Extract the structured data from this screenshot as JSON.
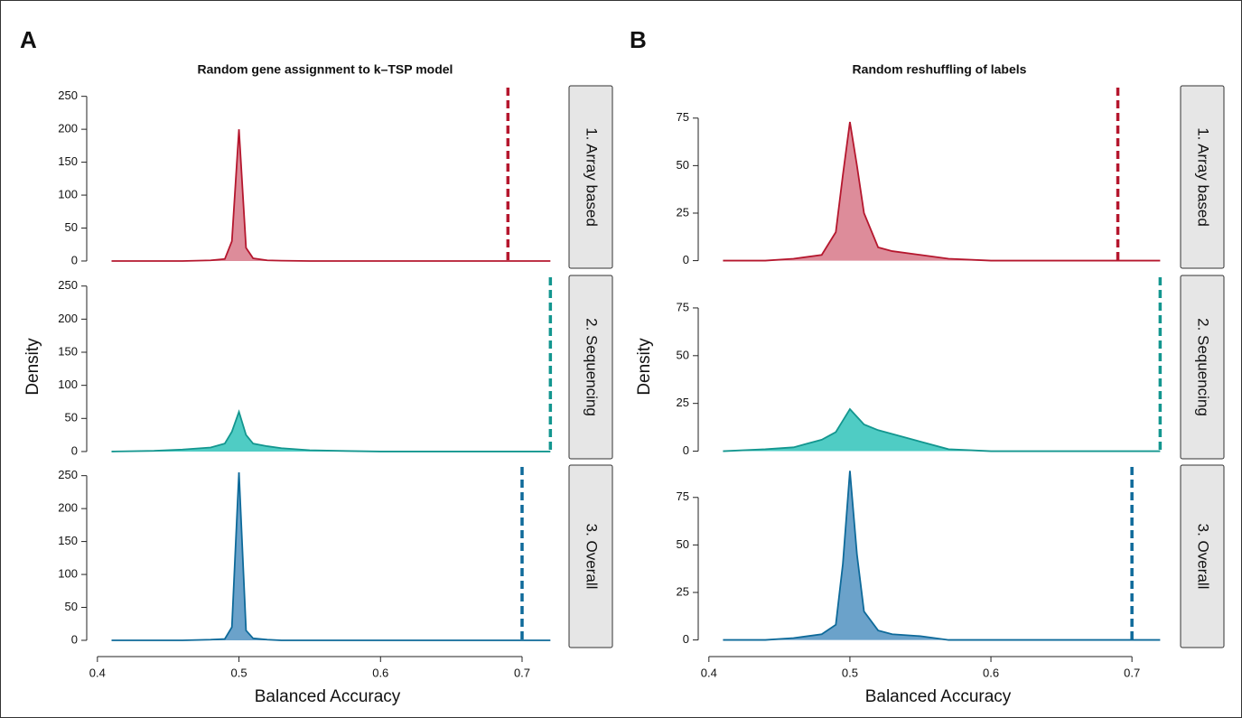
{
  "chart_data": [
    {
      "type": "density",
      "panel": "A",
      "title": "Random gene assignment to k–TSP model",
      "xlabel": "Balanced Accuracy",
      "ylabel": "Density",
      "xlim": [
        0.395,
        0.73
      ],
      "xticks": [
        0.4,
        0.5,
        0.6,
        0.7
      ],
      "ylim": [
        -11,
        266
      ],
      "yticks": [
        0,
        50,
        100,
        150,
        200,
        250
      ],
      "x": [
        0.41,
        0.44,
        0.46,
        0.48,
        0.49,
        0.495,
        0.5,
        0.505,
        0.51,
        0.52,
        0.53,
        0.55,
        0.57,
        0.6,
        0.65,
        0.72
      ],
      "series": [
        {
          "name": "1. Array based",
          "color": "#b5172e",
          "fill": "#d9808f",
          "cutoff": 0.69,
          "values": [
            0,
            0,
            0,
            1,
            3,
            30,
            200,
            20,
            4,
            1,
            0.5,
            0,
            0,
            0,
            0,
            0
          ]
        },
        {
          "name": "2. Sequencing",
          "color": "#13968f",
          "fill": "#3cc7be",
          "cutoff": 0.72,
          "values": [
            0,
            1,
            3,
            6,
            12,
            30,
            60,
            25,
            12,
            8,
            5,
            2,
            1,
            0,
            0,
            0
          ]
        },
        {
          "name": "3. Overall",
          "color": "#0e6a9a",
          "fill": "#5b98c4",
          "cutoff": 0.7,
          "values": [
            0,
            0,
            0,
            1,
            2,
            20,
            255,
            15,
            3,
            1,
            0,
            0,
            0,
            0,
            0,
            0
          ]
        }
      ]
    },
    {
      "type": "density",
      "panel": "B",
      "title": "Random reshuffling of labels",
      "xlabel": "Balanced Accuracy",
      "ylabel": "Density",
      "xlim": [
        0.395,
        0.73
      ],
      "xticks": [
        0.4,
        0.5,
        0.6,
        0.7
      ],
      "ylim": [
        -4,
        92
      ],
      "yticks": [
        0,
        25,
        50,
        75
      ],
      "x": [
        0.41,
        0.44,
        0.46,
        0.48,
        0.49,
        0.495,
        0.5,
        0.505,
        0.51,
        0.52,
        0.53,
        0.55,
        0.57,
        0.6,
        0.65,
        0.72
      ],
      "series": [
        {
          "name": "1. Array based",
          "color": "#b5172e",
          "fill": "#d9808f",
          "cutoff": 0.69,
          "values": [
            0,
            0,
            1,
            3,
            15,
            45,
            73,
            50,
            25,
            7,
            5,
            3,
            1,
            0,
            0,
            0
          ]
        },
        {
          "name": "2. Sequencing",
          "color": "#13968f",
          "fill": "#3cc7be",
          "cutoff": 0.72,
          "values": [
            0,
            1,
            2,
            6,
            10,
            16,
            22,
            18,
            14,
            11,
            9,
            5,
            1,
            0,
            0,
            0
          ]
        },
        {
          "name": "3. Overall",
          "color": "#0e6a9a",
          "fill": "#5b98c4",
          "cutoff": 0.7,
          "values": [
            0,
            0,
            1,
            3,
            8,
            40,
            89,
            45,
            15,
            5,
            3,
            2,
            0,
            0,
            0,
            0
          ]
        }
      ]
    }
  ]
}
